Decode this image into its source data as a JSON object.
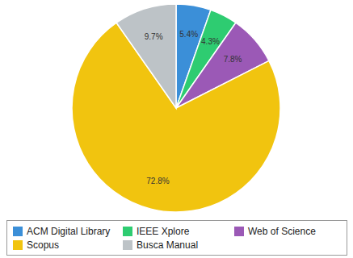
{
  "chart_data": {
    "type": "pie",
    "categories": [
      "ACM Digital Library",
      "IEEE Xplore",
      "Web of Science",
      "Scopus",
      "Busca Manual"
    ],
    "values": [
      5.4,
      4.3,
      7.8,
      72.8,
      9.7
    ],
    "value_labels": [
      "5.4%",
      "4.3%",
      "7.8%",
      "72.8%",
      "9.7%"
    ],
    "colors": [
      "#3b8fd8",
      "#2ecc71",
      "#9b59b6",
      "#f1c40f",
      "#bdc3c7"
    ],
    "data_labels": true,
    "legend": "bottom"
  }
}
